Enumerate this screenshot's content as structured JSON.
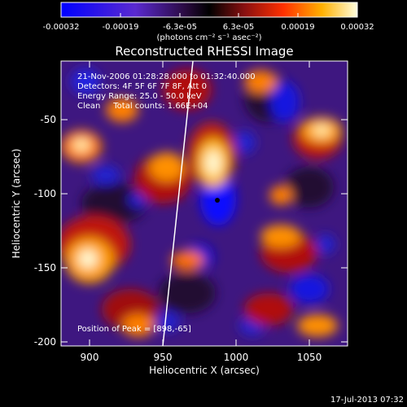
{
  "colorbar": {
    "tick_labels": [
      "-0.00032",
      "-0.00019",
      "-6.3e-05",
      "6.3e-05",
      "0.00019",
      "0.00032"
    ],
    "unit_label": "(photons cm⁻² s⁻¹ asec⁻²)",
    "colors": [
      "#0000ff",
      "#5a2ad0",
      "#2a0a40",
      "#000000",
      "#8a1010",
      "#ff3000",
      "#ffb000",
      "#ffffe0"
    ]
  },
  "title": "Reconstructed RHESSI Image",
  "info": {
    "line1": "21-Nov-2006 01:28:28.000 to 01:32:40.000",
    "line2": "Detectors: 4F 5F 6F 7F 8F, Att 0",
    "line3": "Energy Range: 25.0 - 50.0 keV",
    "line4": "Clean     Total counts: 1.66E+04"
  },
  "peak_text": "Position of Peak = [898,-65]",
  "axes": {
    "xlabel": "Heliocentric X (arcsec)",
    "ylabel": "Heliocentric Y (arcsec)",
    "x_ticks": [
      "900",
      "950",
      "1000",
      "1050"
    ],
    "y_ticks": [
      "-50",
      "-100",
      "-150",
      "-200"
    ],
    "xlim": [
      880,
      1075
    ],
    "ylim": [
      -205,
      -12
    ]
  },
  "timestamp": "17-Jul-2013 07:32"
}
